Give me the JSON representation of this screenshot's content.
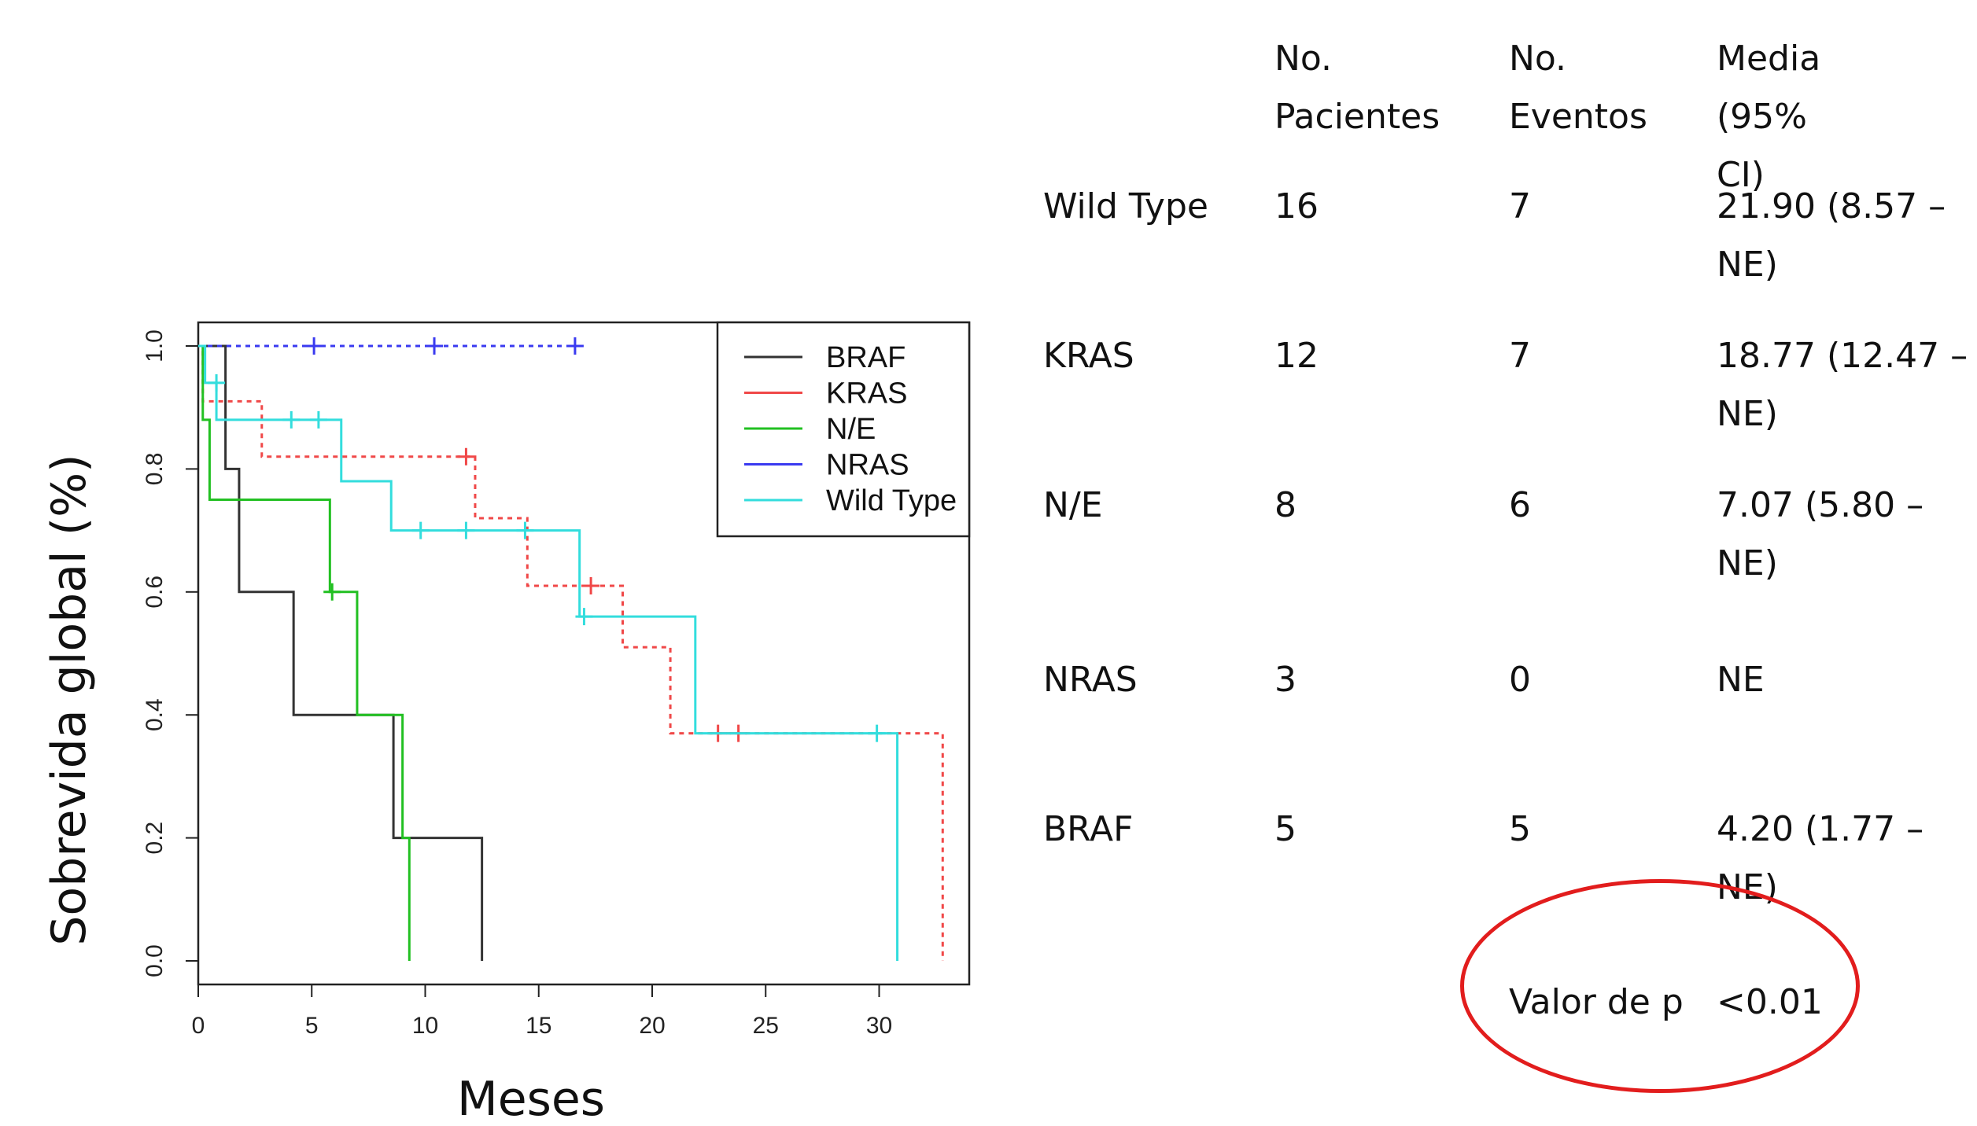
{
  "chart_data": {
    "type": "line",
    "subtype": "kaplan-meier",
    "xlabel": "Meses",
    "ylabel": "Sobrevida global (%)",
    "xlim": [
      0,
      34
    ],
    "ylim": [
      -0.04,
      1.04
    ],
    "x_ticks": [
      "0",
      "5",
      "10",
      "15",
      "20",
      "25",
      "30"
    ],
    "y_ticks": [
      "0.0",
      "0.2",
      "0.4",
      "0.6",
      "0.8",
      "1.0"
    ],
    "legend_position": "top-right",
    "series": [
      {
        "name": "BRAF",
        "color": "#333333",
        "dash": "solid",
        "steps": [
          [
            0,
            1.0
          ],
          [
            1.2,
            0.8
          ],
          [
            1.8,
            0.6
          ],
          [
            4.2,
            0.4
          ],
          [
            8.6,
            0.2
          ],
          [
            12.5,
            0.0
          ]
        ],
        "censored": []
      },
      {
        "name": "KRAS",
        "color": "#f04848",
        "dash": "dotted",
        "steps": [
          [
            0,
            1.0
          ],
          [
            0.2,
            0.91
          ],
          [
            2.8,
            0.82
          ],
          [
            12.2,
            0.72
          ],
          [
            14.5,
            0.61
          ],
          [
            18.7,
            0.51
          ],
          [
            20.8,
            0.37
          ],
          [
            32.8,
            0.0
          ]
        ],
        "censored": [
          [
            11.8,
            0.82
          ],
          [
            17.3,
            0.61
          ],
          [
            22.9,
            0.37
          ],
          [
            23.8,
            0.37
          ]
        ]
      },
      {
        "name": "N/E",
        "color": "#22c022",
        "dash": "solid",
        "steps": [
          [
            0,
            1.0
          ],
          [
            0.2,
            0.88
          ],
          [
            0.5,
            0.75
          ],
          [
            5.8,
            0.6
          ],
          [
            7.0,
            0.4
          ],
          [
            9.0,
            0.2
          ],
          [
            9.3,
            0.0
          ]
        ],
        "censored": [
          [
            5.9,
            0.6
          ]
        ]
      },
      {
        "name": "NRAS",
        "color": "#3a3af0",
        "dash": "dotted",
        "steps": [
          [
            0,
            1.0
          ],
          [
            16.7,
            1.0
          ]
        ],
        "censored": [
          [
            5.1,
            1.0
          ],
          [
            10.4,
            1.0
          ],
          [
            16.6,
            1.0
          ]
        ]
      },
      {
        "name": "Wild Type",
        "color": "#33dddd",
        "dash": "solid",
        "steps": [
          [
            0,
            1.0
          ],
          [
            0.3,
            0.94
          ],
          [
            0.8,
            0.88
          ],
          [
            6.3,
            0.78
          ],
          [
            8.5,
            0.7
          ],
          [
            16.8,
            0.56
          ],
          [
            21.9,
            0.37
          ],
          [
            30.8,
            0.0
          ]
        ],
        "censored": [
          [
            0.8,
            0.94
          ],
          [
            4.1,
            0.88
          ],
          [
            5.3,
            0.88
          ],
          [
            9.8,
            0.7
          ],
          [
            11.8,
            0.7
          ],
          [
            14.4,
            0.7
          ],
          [
            17.0,
            0.56
          ],
          [
            29.9,
            0.37
          ]
        ]
      }
    ]
  },
  "table": {
    "headers": {
      "patients_1": "No.",
      "patients_2": "Pacientes",
      "events_1": "No.",
      "events_2": "Eventos",
      "median_1": "Media",
      "median_2": "(95% CI)"
    },
    "rows": [
      {
        "group": "Wild Type",
        "patients": "16",
        "events": "7",
        "median": "21.90 (8.57 – NE)"
      },
      {
        "group": "KRAS",
        "patients": "12",
        "events": "7",
        "median": "18.77  (12.47 – NE)"
      },
      {
        "group": "N/E",
        "patients": "8",
        "events": "6",
        "median": "7.07  (5.80  – NE)"
      },
      {
        "group": "NRAS",
        "patients": "3",
        "events": "0",
        "median": "NE"
      },
      {
        "group": "BRAF",
        "patients": "5",
        "events": "5",
        "median": "4.20  (1.77  – NE)"
      }
    ],
    "pvalue_label": "Valor de p",
    "pvalue": "<0.01",
    "highlight_color": "#e21d1d"
  }
}
